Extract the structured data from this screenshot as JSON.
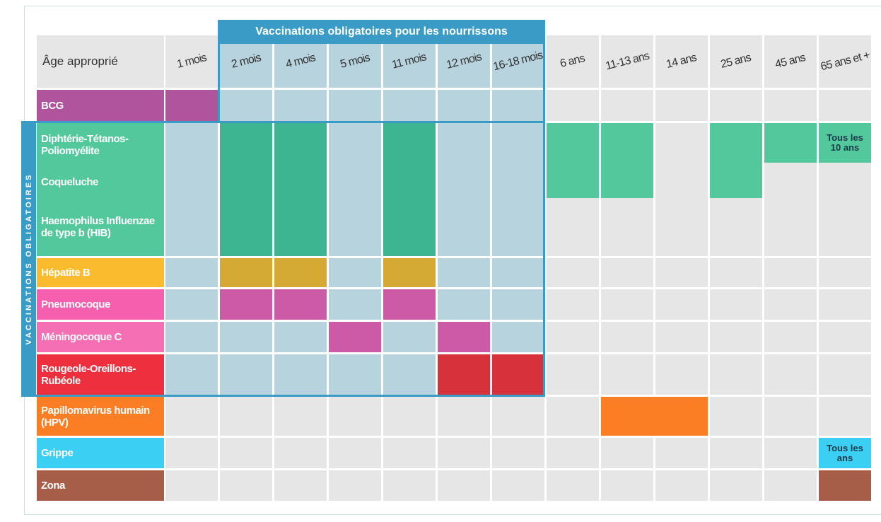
{
  "banner": "Vaccinations obligatoires pour les nourrissons",
  "side_label": "VACCINATIONS OBLIGATOIRES",
  "corner": "Âge approprié",
  "ages": [
    "1 mois",
    "2 mois",
    "4 mois",
    "5 mois",
    "11 mois",
    "12 mois",
    "16-18 mois",
    "6 ans",
    "11-13 ans",
    "14 ans",
    "25 ans",
    "45 ans",
    "65 ans et +"
  ],
  "rows": [
    "BCG",
    "Diphtérie-Tétanos-Poliomyélite",
    "Coqueluche",
    "Haemophilus Influenzae de type b (HIB)",
    "Hépatite B",
    "Pneumocoque",
    "Méningocoque C",
    "Rougeole-Oreillons-Rubéole",
    "Papillomavirus humain (HPV)",
    "Grippe",
    "Zona"
  ],
  "notes": [
    "Tous les 10 ans",
    "Tous les ans"
  ]
}
